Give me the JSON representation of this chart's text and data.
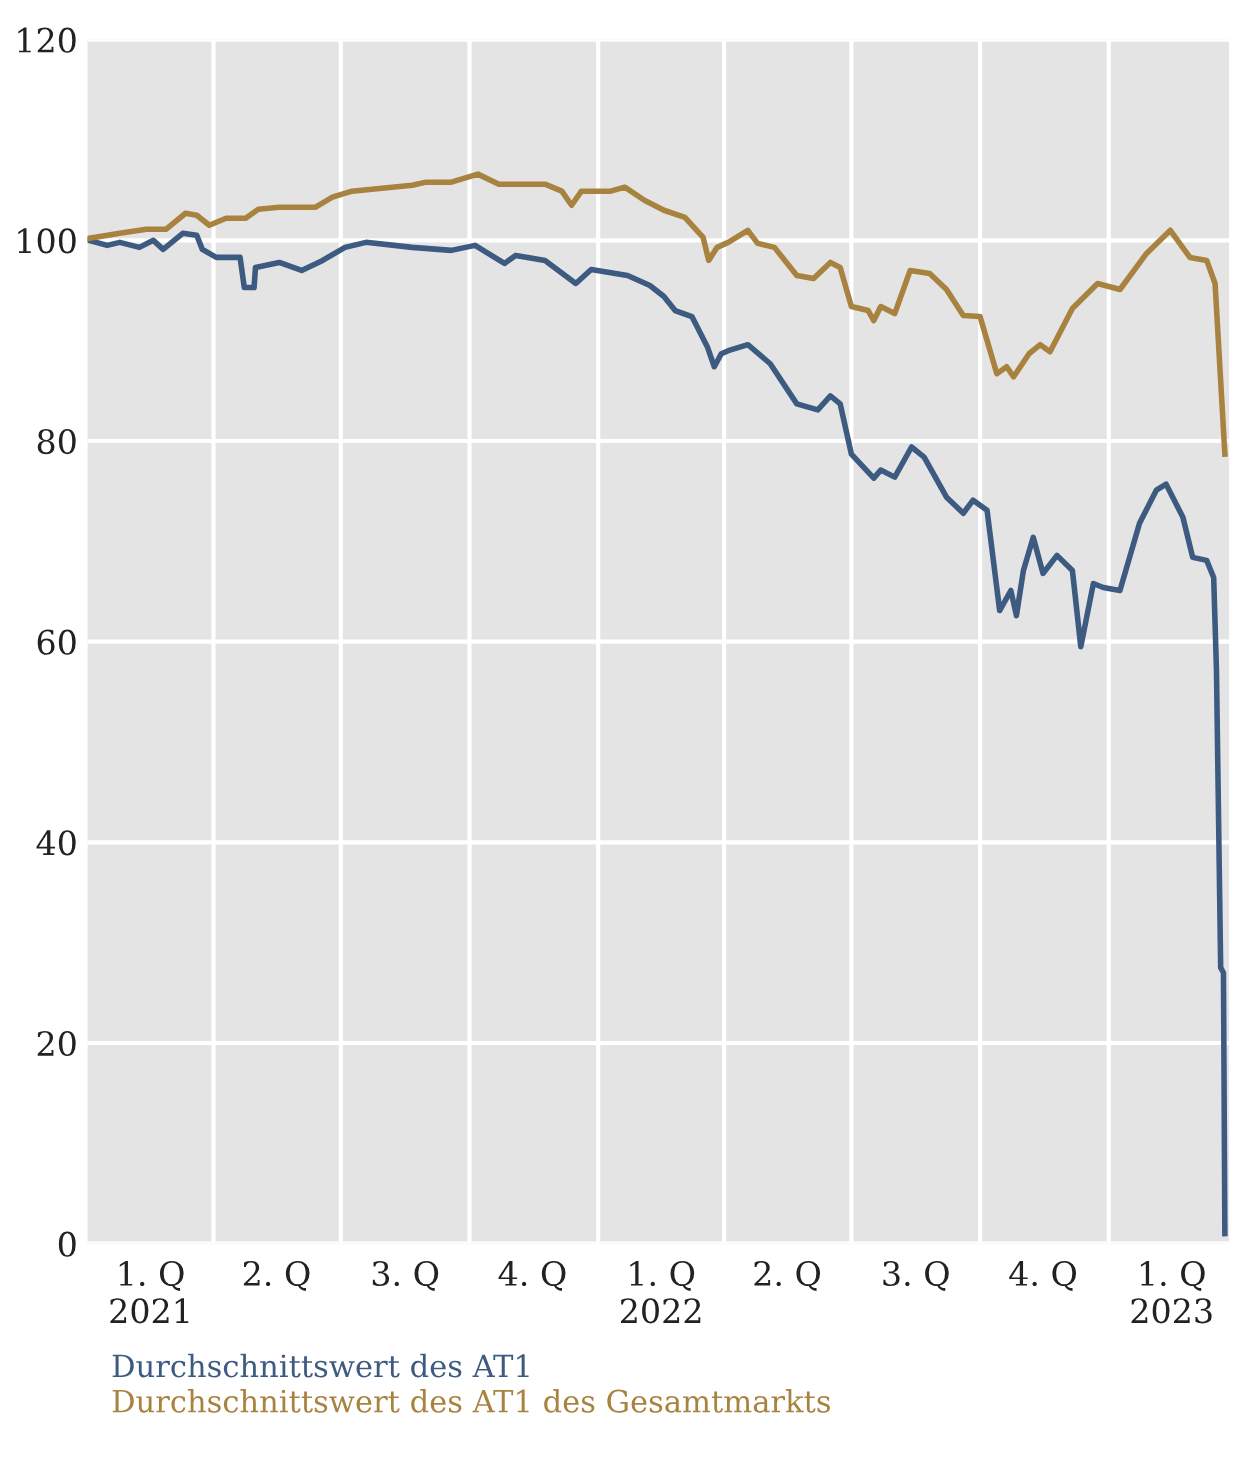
{
  "chart_data": {
    "type": "line",
    "xticks": [
      {
        "value": "2021-02-15",
        "label": "1. Q\n2021"
      },
      {
        "value": "2021-04-01",
        "label": null
      },
      {
        "value": "2021-05-16",
        "label": "2. Q"
      },
      {
        "value": "2021-07-01",
        "label": null
      },
      {
        "value": "2021-08-16",
        "label": "3. Q"
      },
      {
        "value": "2021-10-01",
        "label": null
      },
      {
        "value": "2021-11-15",
        "label": "4. Q"
      },
      {
        "value": "2022-01-01",
        "label": null
      },
      {
        "value": "2022-02-15",
        "label": "1. Q\n2022"
      },
      {
        "value": "2022-04-01",
        "label": null
      },
      {
        "value": "2022-05-16",
        "label": "2. Q"
      },
      {
        "value": "2022-07-01",
        "label": null
      },
      {
        "value": "2022-08-16",
        "label": "3. Q"
      },
      {
        "value": "2022-10-01",
        "label": null
      },
      {
        "value": "2022-11-15",
        "label": "4. Q"
      },
      {
        "value": "2023-01-01",
        "label": null
      },
      {
        "value": "2023-02-15",
        "label": "1. Q\n2023"
      }
    ],
    "xlim": [
      "2021-01-01",
      "2023-03-28"
    ],
    "ylim": [
      0,
      120
    ],
    "yticks": [
      0,
      20,
      40,
      60,
      80,
      100,
      120
    ],
    "grid": true,
    "legend": "bottom",
    "marker": "none",
    "line_style": "solid",
    "series": [
      {
        "name": "Durchschnittswert des AT1",
        "color": "#3d5a80",
        "x": [
          "2021-01-02",
          "2021-01-15",
          "2021-01-24",
          "2021-02-07",
          "2021-02-17",
          "2021-02-24",
          "2021-03-10",
          "2021-03-20",
          "2021-03-24",
          "2021-04-03",
          "2021-04-20",
          "2021-04-23",
          "2021-04-30",
          "2021-05-01",
          "2021-05-18",
          "2021-06-03",
          "2021-06-18",
          "2021-07-04",
          "2021-07-19",
          "2021-08-21",
          "2021-09-18",
          "2021-10-05",
          "2021-10-26",
          "2021-11-03",
          "2021-11-24",
          "2021-12-16",
          "2021-12-27",
          "2022-01-22",
          "2022-02-07",
          "2022-02-17",
          "2022-02-25",
          "2022-03-09",
          "2022-03-20",
          "2022-03-25",
          "2022-03-30",
          "2022-04-04",
          "2022-04-18",
          "2022-05-04",
          "2022-05-23",
          "2022-06-07",
          "2022-06-16",
          "2022-06-23",
          "2022-07-01",
          "2022-07-17",
          "2022-07-22",
          "2022-08-01",
          "2022-08-13",
          "2022-08-22",
          "2022-09-07",
          "2022-09-19",
          "2022-09-26",
          "2022-10-06",
          "2022-10-15",
          "2022-10-23",
          "2022-10-27",
          "2022-11-01",
          "2022-11-08",
          "2022-11-15",
          "2022-11-25",
          "2022-12-06",
          "2022-12-12",
          "2022-12-21",
          "2022-12-28",
          "2023-01-09",
          "2023-01-23",
          "2023-02-04",
          "2023-02-11",
          "2023-02-23",
          "2023-03-02",
          "2023-03-12",
          "2023-03-17",
          "2023-03-19",
          "2023-03-22",
          "2023-03-24",
          "2023-03-25"
        ],
        "values": [
          100,
          99.5,
          99.8,
          99.3,
          100,
          99.1,
          100.7,
          100.5,
          99.1,
          98.3,
          98.3,
          95.3,
          95.3,
          97.3,
          97.8,
          97,
          98,
          99.3,
          99.8,
          99.3,
          99,
          99.5,
          97.7,
          98.5,
          98,
          95.7,
          97.1,
          96.5,
          95.5,
          94.4,
          93,
          92.4,
          89.4,
          87.4,
          88.7,
          89,
          89.6,
          87.7,
          83.7,
          83.1,
          84.5,
          83.7,
          78.7,
          76.3,
          77.1,
          76.4,
          79.4,
          78.4,
          74.4,
          72.8,
          74.1,
          73.1,
          63.1,
          65.1,
          62.6,
          67.1,
          70.4,
          66.8,
          68.6,
          67.1,
          59.5,
          65.8,
          65.4,
          65.1,
          71.8,
          75.1,
          75.7,
          72.4,
          68.4,
          68.1,
          66.4,
          57.1,
          27.5,
          27,
          1
        ]
      },
      {
        "name": "Durchschnittswert des AT1 des Gesamtmarkts",
        "color": "#a8823f",
        "x": [
          "2021-01-02",
          "2021-01-24",
          "2021-02-12",
          "2021-02-26",
          "2021-03-12",
          "2021-03-20",
          "2021-03-29",
          "2021-04-10",
          "2021-04-24",
          "2021-05-03",
          "2021-05-18",
          "2021-06-13",
          "2021-06-25",
          "2021-07-09",
          "2021-08-21",
          "2021-08-31",
          "2021-09-18",
          "2021-10-07",
          "2021-10-22",
          "2021-11-24",
          "2021-12-06",
          "2021-12-13",
          "2021-12-20",
          "2022-01-10",
          "2022-01-20",
          "2022-02-03",
          "2022-02-17",
          "2022-03-04",
          "2022-03-17",
          "2022-03-21",
          "2022-03-27",
          "2022-04-04",
          "2022-04-18",
          "2022-04-25",
          "2022-05-07",
          "2022-05-23",
          "2022-06-04",
          "2022-06-16",
          "2022-06-23",
          "2022-07-01",
          "2022-07-13",
          "2022-07-17",
          "2022-07-22",
          "2022-08-01",
          "2022-08-12",
          "2022-08-26",
          "2022-09-07",
          "2022-09-19",
          "2022-10-01",
          "2022-10-13",
          "2022-10-20",
          "2022-10-25",
          "2022-11-05",
          "2022-11-13",
          "2022-11-20",
          "2022-12-06",
          "2022-12-24",
          "2023-01-09",
          "2023-01-28",
          "2023-02-14",
          "2023-02-28",
          "2023-03-12",
          "2023-03-18",
          "2023-03-25"
        ],
        "values": [
          100.2,
          100.7,
          101.1,
          101.1,
          102.7,
          102.5,
          101.5,
          102.2,
          102.2,
          103.1,
          103.3,
          103.3,
          104.3,
          104.9,
          105.5,
          105.8,
          105.8,
          106.6,
          105.6,
          105.6,
          104.9,
          103.5,
          104.9,
          104.9,
          105.3,
          104,
          103,
          102.3,
          100.3,
          98,
          99.3,
          99.8,
          101,
          99.7,
          99.3,
          96.5,
          96.2,
          97.8,
          97.3,
          93.4,
          93,
          92,
          93.4,
          92.7,
          97,
          96.7,
          95.1,
          92.5,
          92.4,
          86.7,
          87.4,
          86.4,
          88.7,
          89.6,
          88.9,
          93.2,
          95.7,
          95.1,
          98.7,
          101,
          98.3,
          98,
          95.7,
          78.7
        ]
      }
    ]
  }
}
